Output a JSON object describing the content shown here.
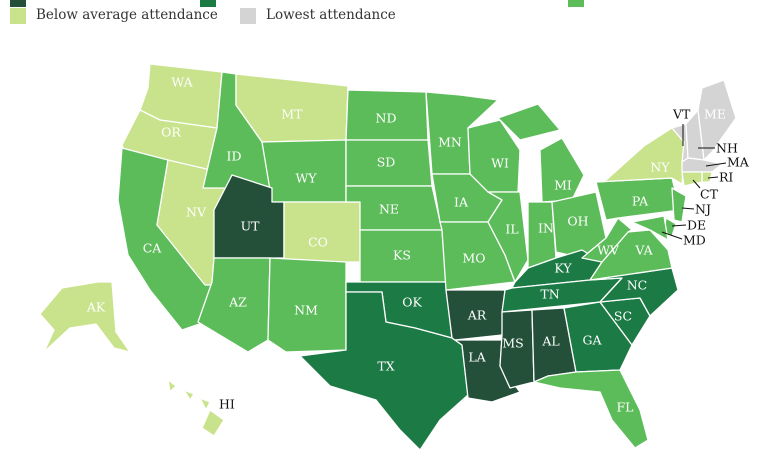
{
  "legend": {
    "items": [
      {
        "key": "highest",
        "label": "",
        "color": "#24503a"
      },
      {
        "key": "above",
        "label": "",
        "color": "#1c7a45"
      },
      {
        "key": "average",
        "label": "",
        "color": "#5cbc5a"
      },
      {
        "key": "below",
        "label": "Below average attendance",
        "color": "#c8e38c"
      },
      {
        "key": "lowest",
        "label": "Lowest attendance",
        "color": "#d4d4d4"
      }
    ]
  },
  "states": {
    "WA": "below",
    "OR": "below",
    "CA": "average",
    "NV": "below",
    "ID": "average",
    "MT": "below",
    "WY": "average",
    "UT": "highest",
    "CO": "below",
    "AZ": "average",
    "NM": "average",
    "ND": "average",
    "SD": "average",
    "NE": "average",
    "KS": "average",
    "OK": "above",
    "TX": "above",
    "MN": "average",
    "IA": "average",
    "MO": "average",
    "AR": "highest",
    "LA": "highest",
    "WI": "average",
    "IL": "average",
    "MI": "average",
    "IN": "average",
    "OH": "average",
    "KY": "above",
    "TN": "above",
    "MS": "highest",
    "AL": "highest",
    "GA": "above",
    "FL": "average",
    "SC": "above",
    "NC": "above",
    "VA": "average",
    "WV": "average",
    "PA": "average",
    "NY": "below",
    "VT": "lowest",
    "NH": "lowest",
    "ME": "lowest",
    "MA": "lowest",
    "RI": "below",
    "CT": "below",
    "NJ": "average",
    "DE": "average",
    "MD": "average",
    "AK": "below",
    "HI": "below"
  },
  "labels": [
    "WA",
    "OR",
    "CA",
    "NV",
    "ID",
    "MT",
    "WY",
    "UT",
    "CO",
    "AZ",
    "NM",
    "ND",
    "SD",
    "NE",
    "KS",
    "OK",
    "TX",
    "MN",
    "IA",
    "MO",
    "AR",
    "LA",
    "WI",
    "IL",
    "MI",
    "IN",
    "OH",
    "KY",
    "TN",
    "MS",
    "AL",
    "GA",
    "FL",
    "SC",
    "NC",
    "VA",
    "WV",
    "PA",
    "NY",
    "ME",
    "AK",
    "HI"
  ],
  "callouts": [
    "VT",
    "NH",
    "MA",
    "RI",
    "CT",
    "NJ",
    "DE",
    "MD"
  ]
}
